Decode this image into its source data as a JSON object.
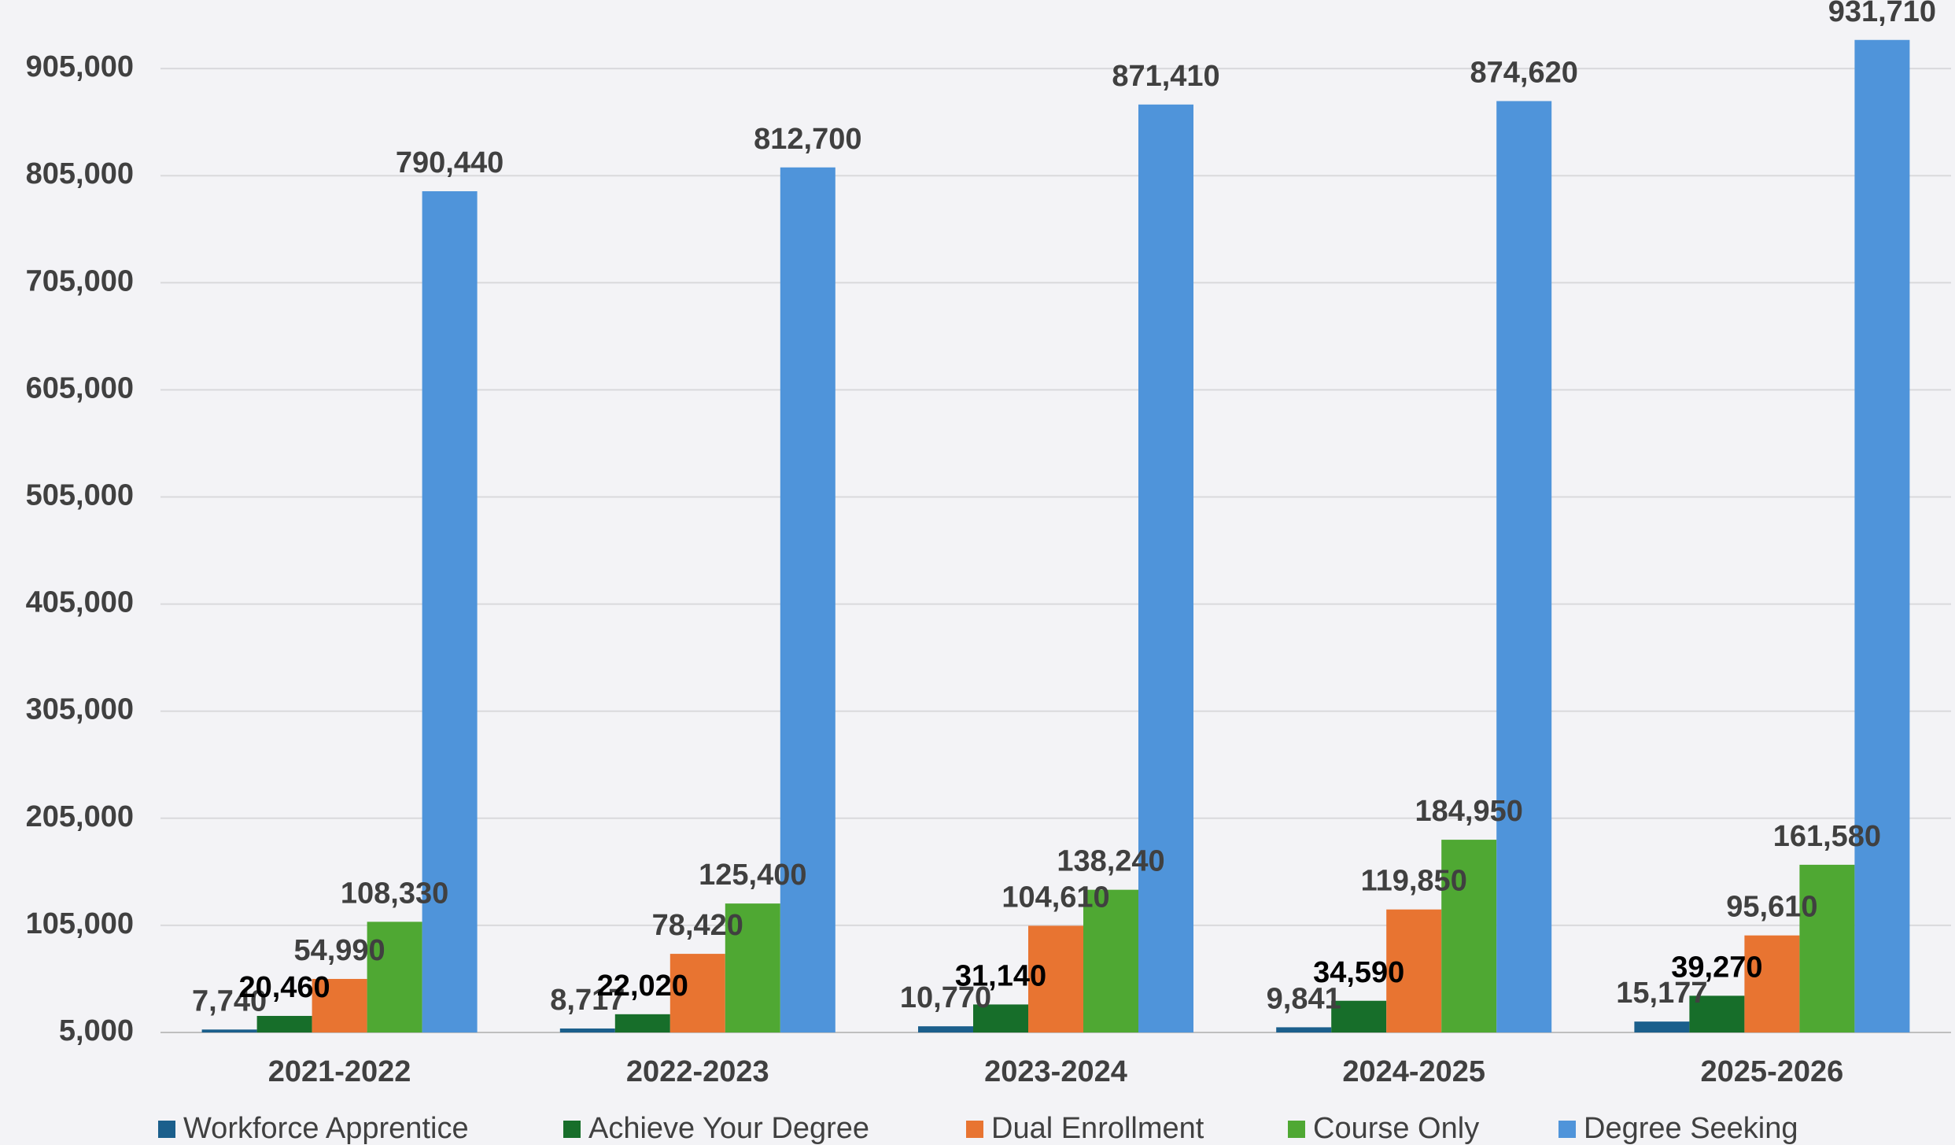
{
  "chart_data": {
    "type": "bar",
    "categories": [
      "2021-2022",
      "2022-2023",
      "2023-2024",
      "2024-2025",
      "2025-2026"
    ],
    "series": [
      {
        "name": "Workforce Apprentice",
        "color": "#1b5f8c",
        "label_color": "#404040",
        "values": [
          7740,
          8717,
          10770,
          9841,
          15177
        ],
        "value_labels": [
          "7,740",
          "8,717",
          "10,770",
          "9,841",
          "15,177"
        ]
      },
      {
        "name": "Achieve Your Degree",
        "color": "#176e2a",
        "label_color": "#000000",
        "values": [
          20460,
          22020,
          31140,
          34590,
          39270
        ],
        "value_labels": [
          "20,460",
          "22,020",
          "31,140",
          "34,590",
          "39,270"
        ]
      },
      {
        "name": "Dual Enrollment",
        "color": "#e87431",
        "label_color": "#404040",
        "values": [
          54990,
          78420,
          104610,
          119850,
          95610
        ],
        "value_labels": [
          "54,990",
          "78,420",
          "104,610",
          "119,850",
          "95,610"
        ]
      },
      {
        "name": "Course Only",
        "color": "#4fa833",
        "label_color": "#404040",
        "values": [
          108330,
          125400,
          138240,
          184950,
          161580
        ],
        "value_labels": [
          "108,330",
          "125,400",
          "138,240",
          "184,950",
          "161,580"
        ]
      },
      {
        "name": "Degree Seeking",
        "color": "#4f94da",
        "label_color": "#404040",
        "values": [
          790440,
          812700,
          871410,
          874620,
          931710
        ],
        "value_labels": [
          "790,440",
          "812,700",
          "871,410",
          "874,620",
          "931,710"
        ]
      }
    ],
    "ylim": [
      5000,
      969000
    ],
    "yticks": [
      {
        "value": 5000,
        "label": "5,000"
      },
      {
        "value": 105000,
        "label": "105,000"
      },
      {
        "value": 205000,
        "label": "205,000"
      },
      {
        "value": 305000,
        "label": "305,000"
      },
      {
        "value": 405000,
        "label": "405,000"
      },
      {
        "value": 505000,
        "label": "505,000"
      },
      {
        "value": 605000,
        "label": "605,000"
      },
      {
        "value": 705000,
        "label": "705,000"
      },
      {
        "value": 805000,
        "label": "805,000"
      },
      {
        "value": 905000,
        "label": "905,000"
      }
    ],
    "grid": true,
    "legend": "bottom"
  }
}
